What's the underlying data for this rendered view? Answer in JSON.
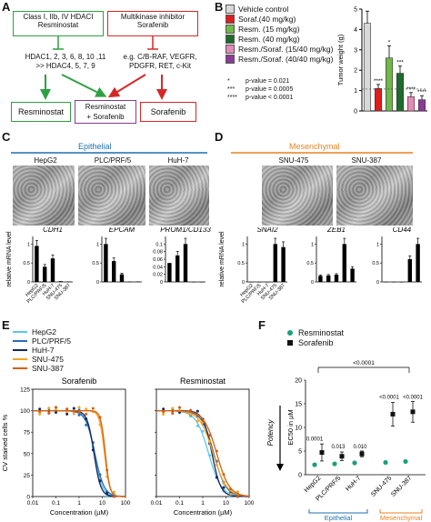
{
  "panel_labels": {
    "A": "A",
    "B": "B",
    "C": "C",
    "D": "D",
    "E": "E",
    "F": "F"
  },
  "panelA": {
    "hdaci_box": "Class I, IIb, IV HDACI\nResminostat",
    "mki_box": "Multikinase inhibitor\nSorafenib",
    "hdac_targets": "HDAC1, 2, 3, 6, 8, 10 ,11\n>> HDAC4, 5, 7, 9",
    "kinase_targets": "e.g. C/B-RAF, VEGFR,\nPDGFR, RET, c-Kit",
    "out_resminostat": "Resminostat",
    "out_combo": "Resminostat\n+ Sorafenib",
    "out_sorafenib": "Sorafenib"
  },
  "panelB": {
    "legend": [
      {
        "label": "Vehicle control",
        "color": "#d9d9d9"
      },
      {
        "label": "Soraf.(40 mg/kg)",
        "color": "#e01d1d"
      },
      {
        "label": "Resm. (15 mg/kg)",
        "color": "#70b84a"
      },
      {
        "label": "Resm. (40 mg/kg)",
        "color": "#1e6b2a"
      },
      {
        "label": "Resm./Soraf. (15/40 mg/kg)",
        "color": "#e68ab5"
      },
      {
        "label": "Resm./Soraf. (40/40 mg/kg)",
        "color": "#8a3b96"
      }
    ],
    "pvalues": [
      {
        "sym": "*",
        "text": "p-value = 0.021"
      },
      {
        "sym": "***",
        "text": "p-value = 0.0005"
      },
      {
        "sym": "****",
        "text": "p-value < 0.0001"
      }
    ]
  },
  "panelC": {
    "header": "Epithelial",
    "cell_lines": [
      "HepG2",
      "PLC/PRF/5",
      "HuH-7"
    ],
    "genes": [
      "CDH1",
      "EPCAM",
      "PROM1/CD133"
    ]
  },
  "panelD": {
    "header": "Mesenchymal",
    "cell_lines": [
      "SNU-475",
      "SNU-387"
    ],
    "genes": [
      "SNAI2",
      "ZEB1",
      "CD44"
    ]
  },
  "panelE": {
    "legend": [
      {
        "label": "HepG2",
        "color": "#5ec8e8"
      },
      {
        "label": "PLC/PRF/5",
        "color": "#2a6fb8"
      },
      {
        "label": "HuH-7",
        "color": "#16255e"
      },
      {
        "label": "SNU-475",
        "color": "#f5a623"
      },
      {
        "label": "SNU-387",
        "color": "#d95f0e"
      }
    ],
    "titles": [
      "Sorafenib",
      "Resminostat"
    ]
  },
  "panelF": {
    "legend": [
      {
        "label": "Resminostat",
        "color": "#1aa079"
      },
      {
        "label": "Sorafenib",
        "color": "#111111"
      }
    ],
    "potency_label": "Potency",
    "group_labels": [
      "Epithelial",
      "Mesenchymal"
    ]
  },
  "chart_data": [
    {
      "id": "B",
      "type": "bar",
      "ylabel": "Tumor weight (g)",
      "ylim": [
        0,
        5
      ],
      "yticks": [
        0,
        1,
        2,
        3,
        4,
        5
      ],
      "categories": [
        "Vehicle control",
        "Soraf.(40 mg/kg)",
        "Resm. (15 mg/kg)",
        "Resm. (40 mg/kg)",
        "Resm./Soraf. (15/40 mg/kg)",
        "Resm./Soraf. (40/40 mg/kg)"
      ],
      "values": [
        4.3,
        1.1,
        2.6,
        1.85,
        0.7,
        0.55
      ],
      "errors": [
        0.6,
        0.2,
        0.6,
        0.35,
        0.2,
        0.2
      ],
      "significance": [
        "",
        "****",
        "*",
        "***",
        "****",
        "****"
      ]
    },
    {
      "id": "C",
      "type": "bar",
      "ylabel": "relative mRNA level",
      "categories": [
        "HepG2",
        "PLC/PRF/5",
        "HuH-7",
        "SNU-475",
        "SNU-387"
      ],
      "series": [
        {
          "name": "CDH1",
          "values": [
            0.95,
            0.4,
            0.62,
            0.02,
            0.01
          ],
          "ylim": [
            0,
            1.2
          ],
          "yticks": [
            0,
            0.5,
            1.0
          ]
        },
        {
          "name": "EPCAM",
          "values": [
            1.0,
            0.55,
            0.2,
            0.01,
            0.01
          ],
          "ylim": [
            0,
            1.2
          ],
          "yticks": [
            0,
            0.5,
            1.0
          ]
        },
        {
          "name": "PROM1/CD133",
          "values": [
            0.05,
            0.07,
            0.1,
            0.0,
            0.0
          ],
          "ylim": [
            0,
            0.12
          ],
          "yticks": [
            0,
            0.02,
            0.04,
            0.06,
            0.08,
            0.1
          ]
        }
      ]
    },
    {
      "id": "D",
      "type": "bar",
      "ylabel": "relative mRNA level",
      "categories": [
        "HepG2",
        "PLC/PRF/5",
        "HuH-7",
        "SNU-475",
        "SNU-387"
      ],
      "series": [
        {
          "name": "SNAI2",
          "values": [
            0.0,
            0.0,
            0.0,
            1.0,
            0.92
          ],
          "ylim": [
            0,
            1.2
          ],
          "yticks": [
            0,
            0.5,
            1.0
          ]
        },
        {
          "name": "ZEB1",
          "values": [
            0.16,
            0.17,
            0.19,
            1.0,
            0.35
          ],
          "ylim": [
            0,
            1.2
          ],
          "yticks": [
            0,
            0.5,
            1.0
          ]
        },
        {
          "name": "CD44",
          "values": [
            0.0,
            0.0,
            0.0,
            0.6,
            1.0
          ],
          "ylim": [
            0,
            1.2
          ],
          "yticks": [
            0,
            0.5,
            1.0
          ]
        }
      ]
    },
    {
      "id": "E",
      "type": "line",
      "ylabel": "CV stained cells %",
      "xlabel": "Concentration (µM)",
      "xscale": "log",
      "xlim": [
        0.01,
        100
      ],
      "ylim": [
        0,
        125
      ],
      "yticks": [
        0,
        25,
        50,
        75,
        100,
        125
      ],
      "xticks": [
        0.01,
        0.1,
        1,
        10,
        100
      ],
      "plots": [
        {
          "title": "Sorafenib",
          "series": [
            {
              "name": "HepG2",
              "ec50": 4.5,
              "hill": 2.5
            },
            {
              "name": "PLC/PRF/5",
              "ec50": 4.8,
              "hill": 2.2
            },
            {
              "name": "HuH-7",
              "ec50": 4.4,
              "hill": 3.0
            },
            {
              "name": "SNU-475",
              "ec50": 12.5,
              "hill": 4.0
            },
            {
              "name": "SNU-387",
              "ec50": 13.5,
              "hill": 4.5
            }
          ]
        },
        {
          "title": "Resminostat",
          "series": [
            {
              "name": "HepG2",
              "ec50": 1.8,
              "hill": 1.6
            },
            {
              "name": "PLC/PRF/5",
              "ec50": 3.0,
              "hill": 1.7
            },
            {
              "name": "HuH-7",
              "ec50": 2.5,
              "hill": 2.3
            },
            {
              "name": "SNU-475",
              "ec50": 2.8,
              "hill": 1.5
            },
            {
              "name": "SNU-387",
              "ec50": 4.0,
              "hill": 1.6
            }
          ]
        }
      ]
    },
    {
      "id": "F",
      "type": "scatter",
      "ylabel": "EC50 in µM",
      "ylim": [
        0,
        20
      ],
      "yticks": [
        0,
        5,
        10,
        15,
        20
      ],
      "categories": [
        "HepG2",
        "PLC/PRF/5",
        "HuH-7",
        "SNU-475",
        "SNU-387"
      ],
      "series": [
        {
          "name": "Resminostat",
          "values": [
            2.1,
            2.3,
            2.5,
            2.6,
            2.8
          ],
          "errors": [
            0.3,
            0.2,
            0.2,
            0.2,
            0.2
          ]
        },
        {
          "name": "Sorafenib",
          "values": [
            4.7,
            3.9,
            4.4,
            12.8,
            13.3
          ],
          "errors": [
            1.8,
            0.9,
            0.6,
            2.5,
            2.2
          ]
        }
      ],
      "annotations": [
        "0.0001",
        "0.013",
        "0.010",
        "<0.0001",
        "<0.0001",
        "<0.0001"
      ]
    }
  ]
}
